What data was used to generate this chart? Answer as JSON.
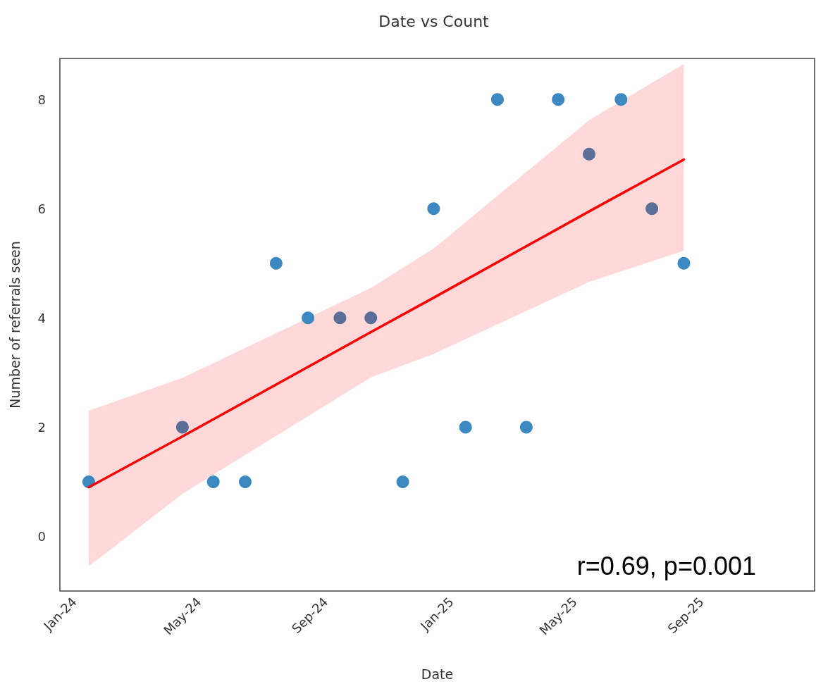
{
  "chart_data": {
    "type": "scatter",
    "title": "Date vs Count",
    "xlabel": "Date",
    "ylabel": "Number of referrals seen",
    "xlim": [
      "2023-12-18",
      "2025-12-20"
    ],
    "xticks": [
      {
        "value": "2024-01-01",
        "label": "Jan-24"
      },
      {
        "value": "2024-05-01",
        "label": "May-24"
      },
      {
        "value": "2024-09-01",
        "label": "Sep-24"
      },
      {
        "value": "2025-01-01",
        "label": "Jan-25"
      },
      {
        "value": "2025-05-01",
        "label": "May-25"
      },
      {
        "value": "2025-09-01",
        "label": "Sep-25"
      }
    ],
    "ylim": [
      -1.0,
      8.75
    ],
    "yticks": [
      0,
      2,
      4,
      6,
      8
    ],
    "grid": false,
    "marker": "circle",
    "series": [
      {
        "type": "scatter",
        "x": [
          "2024-01-15",
          "2024-04-15",
          "2024-05-15",
          "2024-06-15",
          "2024-07-15",
          "2024-08-15",
          "2024-09-15",
          "2024-10-15",
          "2024-11-15",
          "2024-12-15",
          "2025-01-15",
          "2025-02-15",
          "2025-03-15",
          "2025-04-15",
          "2025-05-15",
          "2025-06-15",
          "2025-07-15",
          "2025-08-15"
        ],
        "values": [
          1,
          2,
          1,
          1,
          5,
          4,
          4,
          4,
          1,
          6,
          2,
          8,
          2,
          8,
          7,
          8,
          6,
          5
        ],
        "colors": [
          "#3c88c0",
          "#5a6e98",
          "#3c88c0",
          "#3c88c0",
          "#3c88c0",
          "#3c88c0",
          "#5a6e98",
          "#5a6e98",
          "#3c88c0",
          "#3c88c0",
          "#3c88c0",
          "#3c88c0",
          "#3c88c0",
          "#3c88c0",
          "#5a6e98",
          "#3c88c0",
          "#5a6e98",
          "#3c88c0"
        ]
      },
      {
        "type": "line",
        "color": "#ff0000",
        "marker": "none",
        "x": [
          "2024-01-15",
          "2024-04-15",
          "2024-10-15",
          "2024-12-15",
          "2025-05-15",
          "2025-08-15"
        ],
        "values": [
          0.9,
          1.83,
          3.74,
          4.37,
          5.95,
          6.9
        ],
        "lower": [
          -0.55,
          0.78,
          2.91,
          3.34,
          4.66,
          5.23
        ],
        "upper": [
          2.3,
          2.9,
          4.55,
          5.27,
          7.62,
          8.65
        ]
      }
    ],
    "annotations": [
      "r=0.69, p=0.001"
    ]
  }
}
